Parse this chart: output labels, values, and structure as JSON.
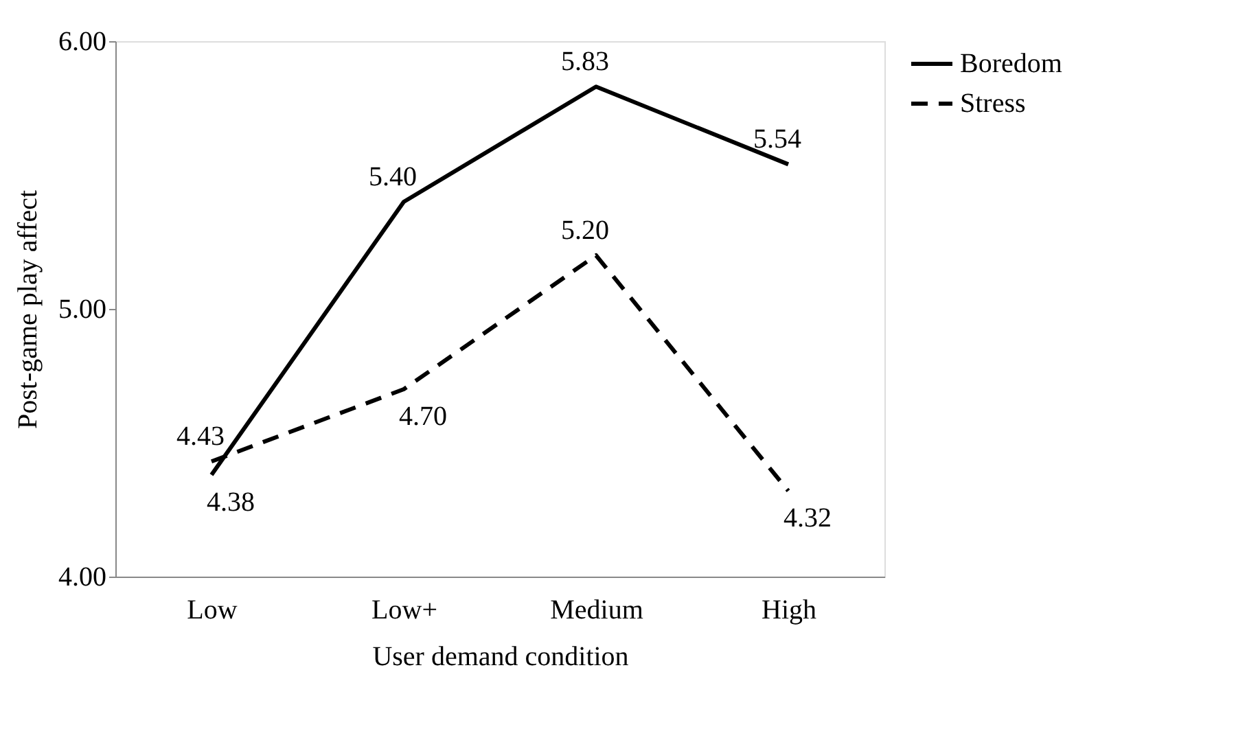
{
  "chart_data": {
    "type": "line",
    "xlabel": "User demand condition",
    "ylabel": "Post-game play affect",
    "categories": [
      "Low",
      "Low+",
      "Medium",
      "High"
    ],
    "series": [
      {
        "name": "Boredom",
        "color": "#000000",
        "line_style": "solid",
        "values": [
          4.38,
          5.4,
          5.83,
          5.54
        ],
        "value_labels": [
          "4.38",
          "5.40",
          "5.83",
          "5.54"
        ]
      },
      {
        "name": "Stress",
        "color": "#000000",
        "line_style": "dashed",
        "values": [
          4.43,
          4.7,
          5.2,
          4.32
        ],
        "value_labels": [
          "4.43",
          "4.70",
          "5.20",
          "4.32"
        ]
      }
    ],
    "ylim": [
      4,
      6
    ],
    "yticks": [
      {
        "value": 4,
        "label": "4.00"
      },
      {
        "value": 5,
        "label": "5.00"
      },
      {
        "value": 6,
        "label": "6.00"
      }
    ],
    "grid": false,
    "legend": "right",
    "marker": "none"
  }
}
